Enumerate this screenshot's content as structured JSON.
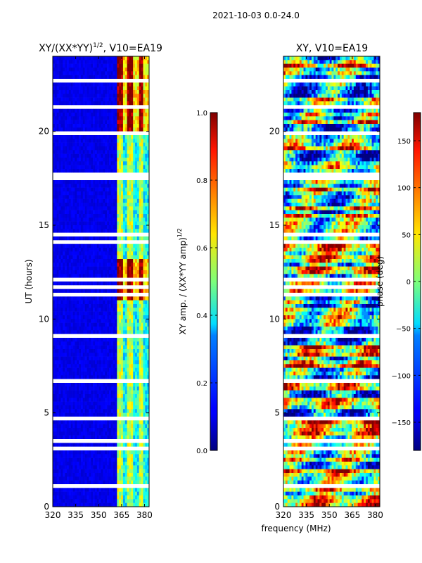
{
  "figure": {
    "suptitle": "2021-10-03 0.0-24.0"
  },
  "chart_data": [
    {
      "type": "heatmap",
      "title_main": "XY/(XX*YY)",
      "title_sup": "1/2",
      "title_tail": ", V10=EA19",
      "ylabel": "UT (hours)",
      "xlabel": "",
      "xlim": [
        320,
        383
      ],
      "ylim": [
        0,
        24
      ],
      "xticks": [
        320,
        335,
        350,
        365,
        380
      ],
      "yticks": [
        0,
        5,
        10,
        15,
        20
      ],
      "colorbar": {
        "label_main": "XY amp. / (XX*YY amp)",
        "label_sup": "1/2",
        "range": [
          0.0,
          1.0
        ],
        "ticks": [
          "0.0",
          "0.2",
          "0.4",
          "0.6",
          "0.8",
          "1.0"
        ],
        "tick_values": [
          0.0,
          0.2,
          0.4,
          0.6,
          0.8,
          1.0
        ],
        "colormap": "jet"
      },
      "features": {
        "background_value": 0.08,
        "active_band_mhz": [
          362,
          383
        ],
        "bright_intervals_ut": [
          [
            11,
            13.1
          ],
          [
            20,
            24
          ]
        ],
        "missing_data_color": "#ffffff"
      }
    },
    {
      "type": "heatmap",
      "title_main": "XY, V10=EA19",
      "ylabel": "",
      "xlabel": "frequency (MHz)",
      "xlim": [
        320,
        383
      ],
      "ylim": [
        0,
        24
      ],
      "xticks": [
        320,
        335,
        350,
        365,
        380
      ],
      "yticks": [
        0,
        5,
        10,
        15,
        20
      ],
      "colorbar": {
        "label_main": "phase (deg)",
        "range": [
          -180,
          180
        ],
        "ticks": [
          "−150",
          "−100",
          "−50",
          "0",
          "50",
          "100",
          "150"
        ],
        "tick_values": [
          -150,
          -100,
          -50,
          0,
          50,
          100,
          150
        ],
        "colormap": "jet"
      },
      "features": {
        "value_range_deg": [
          -180,
          180
        ],
        "noisy_phase": true,
        "missing_data_color": "#ffffff"
      }
    }
  ]
}
